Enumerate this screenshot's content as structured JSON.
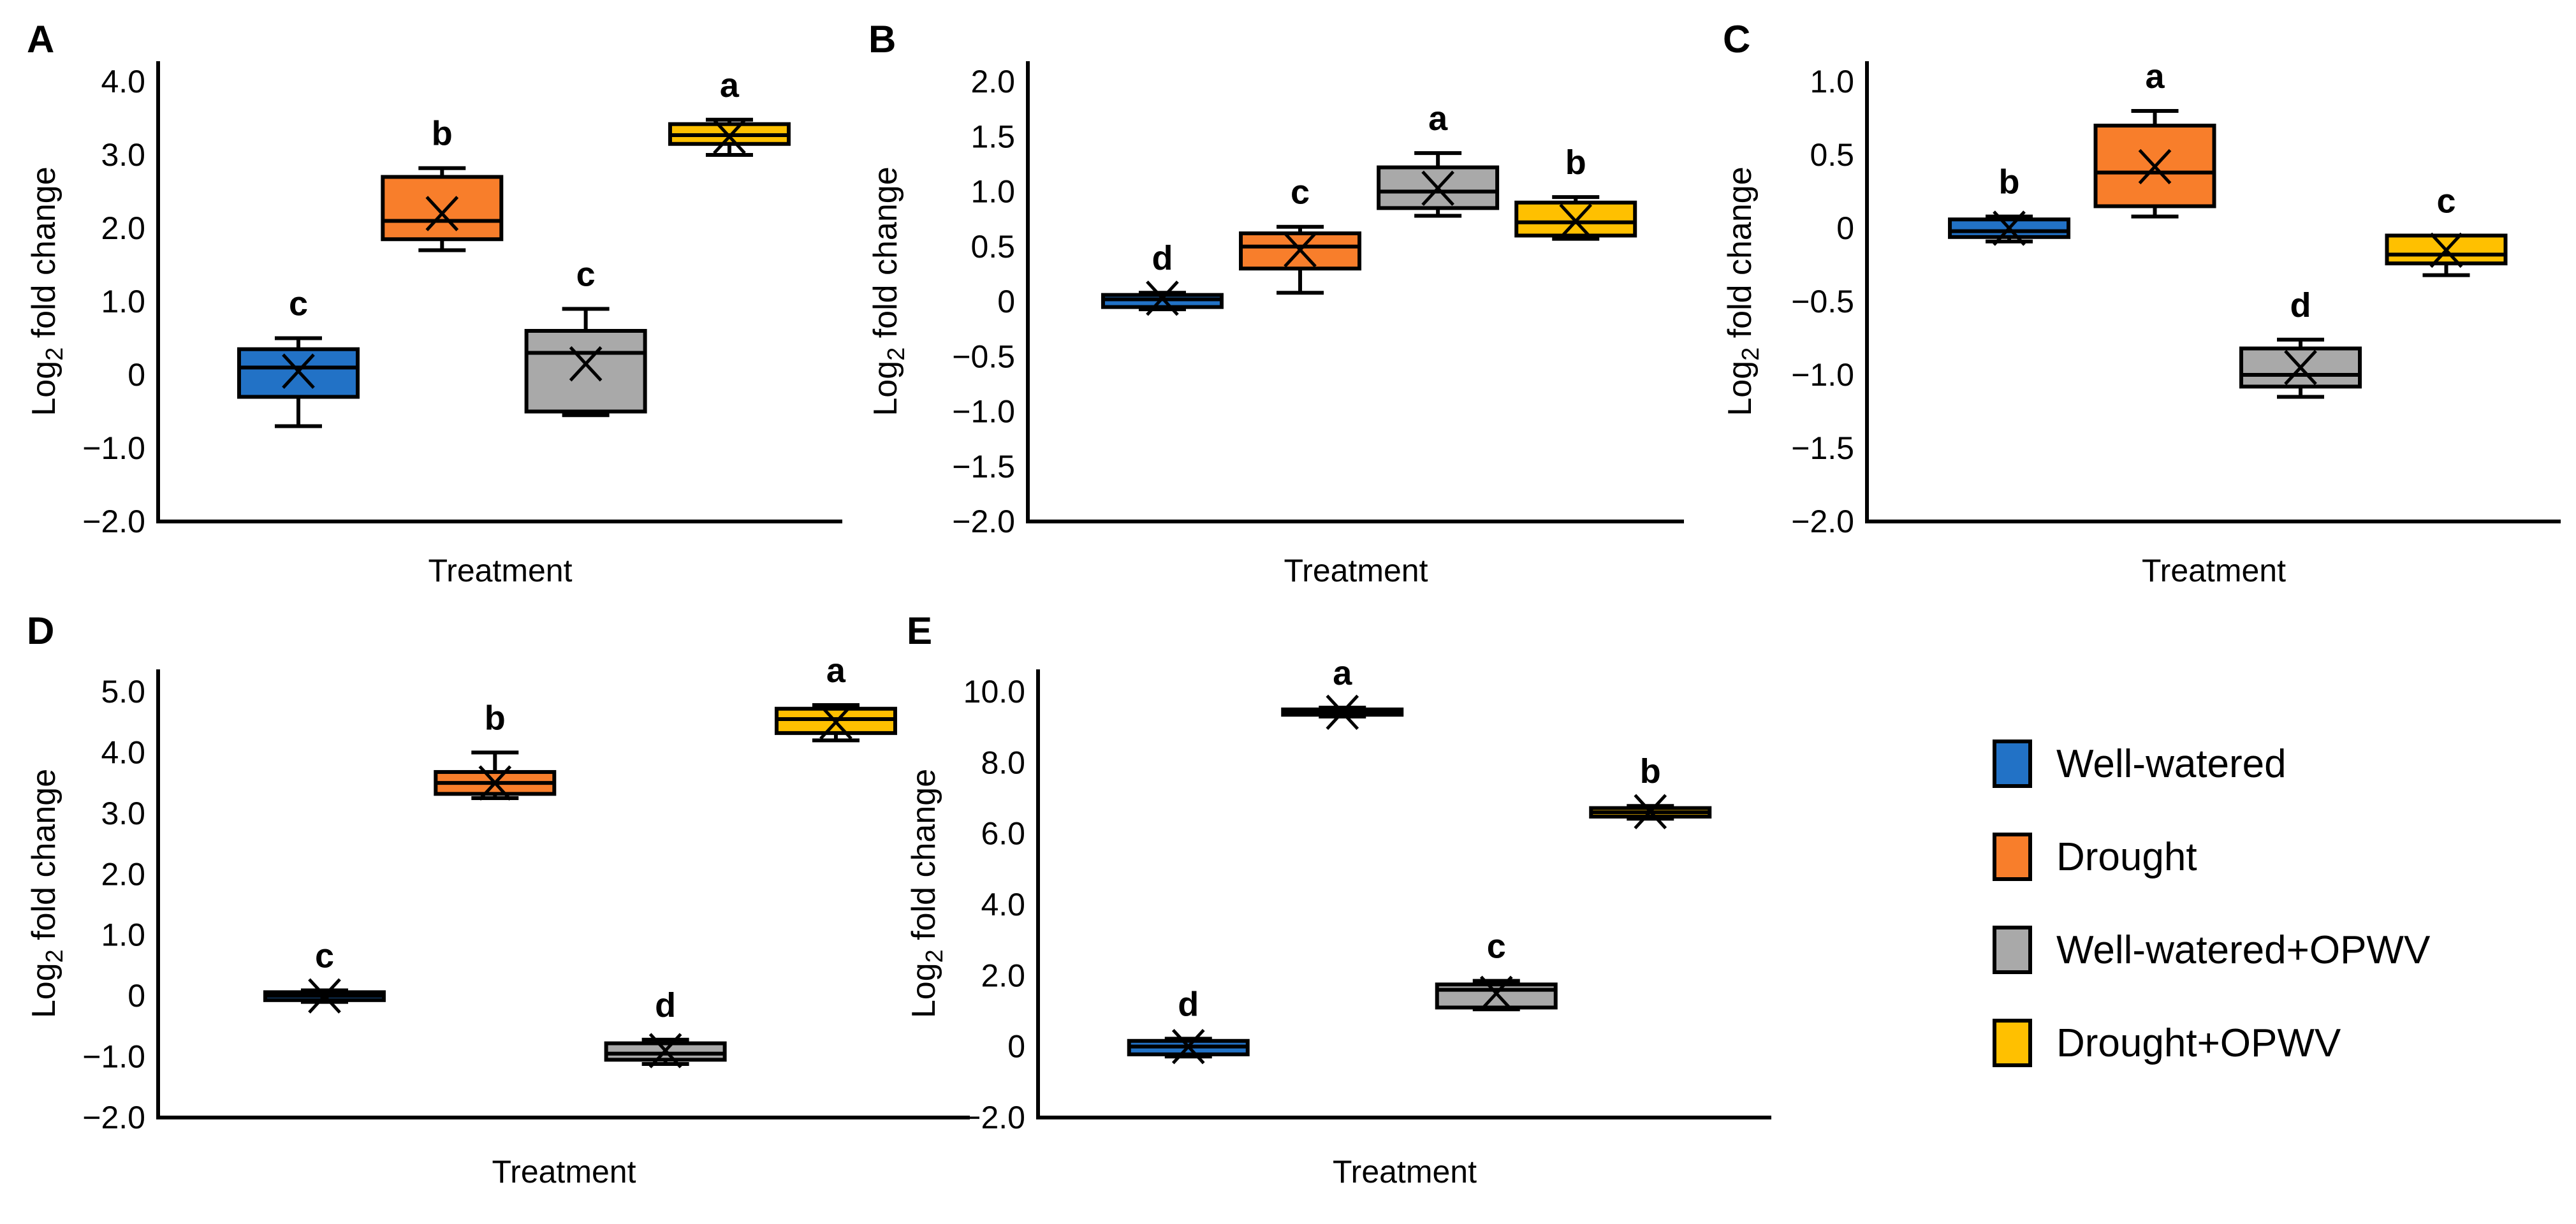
{
  "figure": {
    "xlabel": "Treatment",
    "ylabel": {
      "pre": "Log",
      "sub": "2",
      "post": " fold change"
    }
  },
  "colors": {
    "well_watered": "#2272C6",
    "drought": "#F87E2B",
    "well_watered_opwv": "#A9A9A9",
    "drought_opwv": "#FFC000",
    "axis": "#000000"
  },
  "legend": {
    "items": [
      {
        "label": "Well-watered",
        "color_key": "well_watered"
      },
      {
        "label": "Drought",
        "color_key": "drought"
      },
      {
        "label": "Well-watered+OPWV",
        "color_key": "well_watered_opwv"
      },
      {
        "label": "Drought+OPWV",
        "color_key": "drought_opwv"
      }
    ]
  },
  "chart_data": [
    {
      "type": "box",
      "panel": "A",
      "xlabel": "Treatment",
      "ylim": [
        -2.0,
        4.0
      ],
      "yticks": [
        {
          "v": 4.0,
          "label": "4.0"
        },
        {
          "v": 3.0,
          "label": "3.0"
        },
        {
          "v": 2.0,
          "label": "2.0"
        },
        {
          "v": 1.0,
          "label": "1.0"
        },
        {
          "v": 0.0,
          "label": "0"
        },
        {
          "v": -1.0,
          "label": "−1.0"
        },
        {
          "v": -2.0,
          "label": "−2.0"
        }
      ],
      "series": [
        {
          "group": "Well-watered",
          "color_key": "well_watered",
          "letter": "c",
          "whislo": -0.7,
          "q1": -0.3,
          "med": 0.1,
          "mean": 0.05,
          "q3": 0.35,
          "whishi": 0.5
        },
        {
          "group": "Drought",
          "color_key": "drought",
          "letter": "b",
          "whislo": 1.7,
          "q1": 1.85,
          "med": 2.1,
          "mean": 2.2,
          "q3": 2.7,
          "whishi": 2.82
        },
        {
          "group": "Well-watered+OPWV",
          "color_key": "well_watered_opwv",
          "letter": "c",
          "whislo": -0.55,
          "q1": -0.5,
          "med": 0.3,
          "mean": 0.15,
          "q3": 0.6,
          "whishi": 0.9
        },
        {
          "group": "Drought+OPWV",
          "color_key": "drought_opwv",
          "letter": "a",
          "whislo": 3.0,
          "q1": 3.15,
          "med": 3.27,
          "mean": 3.25,
          "q3": 3.42,
          "whishi": 3.48
        }
      ]
    },
    {
      "type": "box",
      "panel": "B",
      "xlabel": "Treatment",
      "ylim": [
        -2.0,
        2.0
      ],
      "yticks": [
        {
          "v": 2.0,
          "label": "2.0"
        },
        {
          "v": 1.5,
          "label": "1.5"
        },
        {
          "v": 1.0,
          "label": "1.0"
        },
        {
          "v": 0.5,
          "label": "0.5"
        },
        {
          "v": 0.0,
          "label": "0"
        },
        {
          "v": -0.5,
          "label": "−0.5"
        },
        {
          "v": -1.0,
          "label": "−1.0"
        },
        {
          "v": -1.5,
          "label": "−1.5"
        },
        {
          "v": -2.0,
          "label": "−2.0"
        }
      ],
      "series": [
        {
          "group": "Well-watered",
          "color_key": "well_watered",
          "letter": "d",
          "whislo": -0.07,
          "q1": -0.05,
          "med": 0.02,
          "mean": 0.03,
          "q3": 0.06,
          "whishi": 0.08
        },
        {
          "group": "Drought",
          "color_key": "drought",
          "letter": "c",
          "whislo": 0.08,
          "q1": 0.3,
          "med": 0.5,
          "mean": 0.47,
          "q3": 0.62,
          "whishi": 0.68
        },
        {
          "group": "Well-watered+OPWV",
          "color_key": "well_watered_opwv",
          "letter": "a",
          "whislo": 0.78,
          "q1": 0.85,
          "med": 1.0,
          "mean": 1.03,
          "q3": 1.22,
          "whishi": 1.35
        },
        {
          "group": "Drought+OPWV",
          "color_key": "drought_opwv",
          "letter": "b",
          "whislo": 0.57,
          "q1": 0.6,
          "med": 0.72,
          "mean": 0.73,
          "q3": 0.9,
          "whishi": 0.95
        }
      ]
    },
    {
      "type": "box",
      "panel": "C",
      "xlabel": "Treatment",
      "ylim": [
        -2.0,
        1.0
      ],
      "yticks": [
        {
          "v": 1.0,
          "label": "1.0"
        },
        {
          "v": 0.5,
          "label": "0.5"
        },
        {
          "v": 0.0,
          "label": "0"
        },
        {
          "v": -0.5,
          "label": "−0.5"
        },
        {
          "v": -1.0,
          "label": "−1.0"
        },
        {
          "v": -1.5,
          "label": "−1.5"
        },
        {
          "v": -2.0,
          "label": "−2.0"
        }
      ],
      "series": [
        {
          "group": "Well-watered",
          "color_key": "well_watered",
          "letter": "b",
          "whislo": -0.09,
          "q1": -0.06,
          "med": -0.02,
          "mean": 0.0,
          "q3": 0.06,
          "whishi": 0.08
        },
        {
          "group": "Drought",
          "color_key": "drought",
          "letter": "a",
          "whislo": 0.08,
          "q1": 0.15,
          "med": 0.38,
          "mean": 0.42,
          "q3": 0.7,
          "whishi": 0.8
        },
        {
          "group": "Well-watered+OPWV",
          "color_key": "well_watered_opwv",
          "letter": "d",
          "whislo": -1.15,
          "q1": -1.08,
          "med": -1.0,
          "mean": -0.95,
          "q3": -0.82,
          "whishi": -0.76
        },
        {
          "group": "Drought+OPWV",
          "color_key": "drought_opwv",
          "letter": "c",
          "whislo": -0.32,
          "q1": -0.24,
          "med": -0.18,
          "mean": -0.15,
          "q3": -0.05,
          "whishi": -0.05
        }
      ]
    },
    {
      "type": "box",
      "panel": "D",
      "xlabel": "Treatment",
      "ylim": [
        -2.0,
        5.0
      ],
      "yticks": [
        {
          "v": 5.0,
          "label": "5.0"
        },
        {
          "v": 4.0,
          "label": "4.0"
        },
        {
          "v": 3.0,
          "label": "3.0"
        },
        {
          "v": 2.0,
          "label": "2.0"
        },
        {
          "v": 1.0,
          "label": "1.0"
        },
        {
          "v": 0.0,
          "label": "0"
        },
        {
          "v": -1.0,
          "label": "−1.0"
        },
        {
          "v": -2.0,
          "label": "−2.0"
        }
      ],
      "series": [
        {
          "group": "Well-watered",
          "color_key": "well_watered",
          "letter": "c",
          "whislo": -0.1,
          "q1": -0.07,
          "med": 0.0,
          "mean": 0.0,
          "q3": 0.06,
          "whishi": 0.09
        },
        {
          "group": "Drought",
          "color_key": "drought",
          "letter": "b",
          "whislo": 3.25,
          "q1": 3.32,
          "med": 3.5,
          "mean": 3.5,
          "q3": 3.68,
          "whishi": 4.0
        },
        {
          "group": "Well-watered+OPWV",
          "color_key": "well_watered_opwv",
          "letter": "d",
          "whislo": -1.12,
          "q1": -1.05,
          "med": -0.95,
          "mean": -0.9,
          "q3": -0.78,
          "whishi": -0.72
        },
        {
          "group": "Drought+OPWV",
          "color_key": "drought_opwv",
          "letter": "a",
          "whislo": 4.2,
          "q1": 4.32,
          "med": 4.55,
          "mean": 4.5,
          "q3": 4.72,
          "whishi": 4.78
        }
      ]
    },
    {
      "type": "box",
      "panel": "E",
      "xlabel": "Treatment",
      "ylim": [
        -2.0,
        10.0
      ],
      "yticks": [
        {
          "v": 10.0,
          "label": "10.0"
        },
        {
          "v": 8.0,
          "label": "8.0"
        },
        {
          "v": 6.0,
          "label": "6.0"
        },
        {
          "v": 4.0,
          "label": "4.0"
        },
        {
          "v": 2.0,
          "label": "2.0"
        },
        {
          "v": 0.0,
          "label": "0"
        },
        {
          "v": -2.0,
          "label": "−2.0"
        }
      ],
      "series": [
        {
          "group": "Well-watered",
          "color_key": "well_watered",
          "letter": "d",
          "whislo": -0.28,
          "q1": -0.22,
          "med": 0.0,
          "mean": 0.0,
          "q3": 0.16,
          "whishi": 0.22
        },
        {
          "group": "Drought",
          "color_key": "drought",
          "letter": "a",
          "whislo": 9.3,
          "q1": 9.35,
          "med": 9.42,
          "mean": 9.42,
          "q3": 9.5,
          "whishi": 9.55
        },
        {
          "group": "Well-watered+OPWV",
          "color_key": "well_watered_opwv",
          "letter": "c",
          "whislo": 1.05,
          "q1": 1.1,
          "med": 1.6,
          "mean": 1.5,
          "q3": 1.75,
          "whishi": 1.85
        },
        {
          "group": "Drought+OPWV",
          "color_key": "drought_opwv",
          "letter": "b",
          "whislo": 6.42,
          "q1": 6.48,
          "med": 6.6,
          "mean": 6.62,
          "q3": 6.72,
          "whishi": 6.78
        }
      ]
    }
  ]
}
